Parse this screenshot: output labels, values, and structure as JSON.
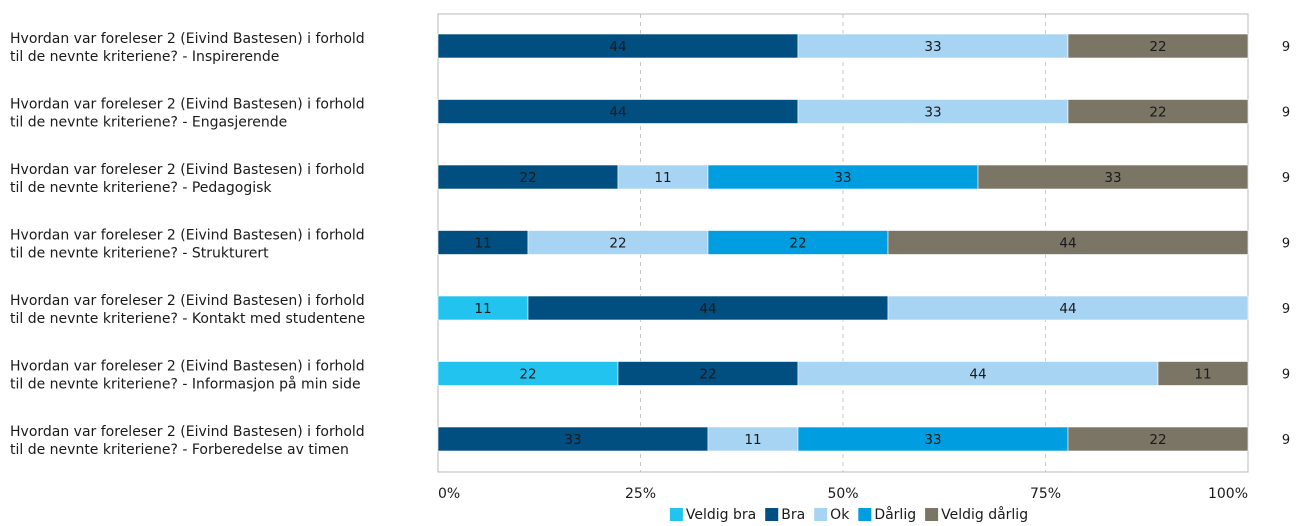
{
  "chart_data": {
    "type": "bar",
    "orientation": "horizontal",
    "stacked": true,
    "percent": true,
    "categories": [
      [
        "Hvordan var foreleser 2 (Eivind Bastesen) i forhold",
        "til de nevnte kriteriene? - Inspirerende"
      ],
      [
        "Hvordan var foreleser 2 (Eivind Bastesen) i forhold",
        "til de nevnte kriteriene? - Engasjerende"
      ],
      [
        "Hvordan var foreleser 2 (Eivind Bastesen) i forhold",
        "til de nevnte kriteriene? - Pedagogisk"
      ],
      [
        "Hvordan var foreleser 2 (Eivind Bastesen) i forhold",
        "til de nevnte kriteriene? - Strukturert"
      ],
      [
        "Hvordan var foreleser 2 (Eivind Bastesen) i forhold",
        "til de nevnte kriteriene? - Kontakt med studentene"
      ],
      [
        "Hvordan var foreleser 2 (Eivind Bastesen) i forhold",
        "til de nevnte kriteriene? - Informasjon på min side"
      ],
      [
        "Hvordan var foreleser 2 (Eivind Bastesen) i forhold",
        "til de nevnte kriteriene? - Forberedelse av timen"
      ]
    ],
    "series": [
      {
        "name": "Veldig bra",
        "color": "#22c4ef",
        "values": [
          0,
          0,
          0,
          0,
          11,
          22,
          0
        ]
      },
      {
        "name": "Bra",
        "color": "#004f80",
        "values": [
          44,
          44,
          22,
          11,
          44,
          22,
          33
        ]
      },
      {
        "name": "Ok",
        "color": "#a8d4f4",
        "values": [
          33,
          33,
          11,
          22,
          44,
          44,
          11
        ]
      },
      {
        "name": "Dårlig",
        "color": "#009ee0",
        "values": [
          0,
          0,
          33,
          22,
          0,
          0,
          33
        ]
      },
      {
        "name": "Veldig dårlig",
        "color": "#7a7565",
        "values": [
          22,
          22,
          33,
          44,
          0,
          11,
          22
        ]
      }
    ],
    "counts": [
      9,
      9,
      9,
      9,
      9,
      9,
      9
    ],
    "xticks": [
      "0%",
      "25%",
      "50%",
      "75%",
      "100%"
    ],
    "xlim": [
      0,
      100
    ],
    "grid": true,
    "legend": "bottom"
  }
}
